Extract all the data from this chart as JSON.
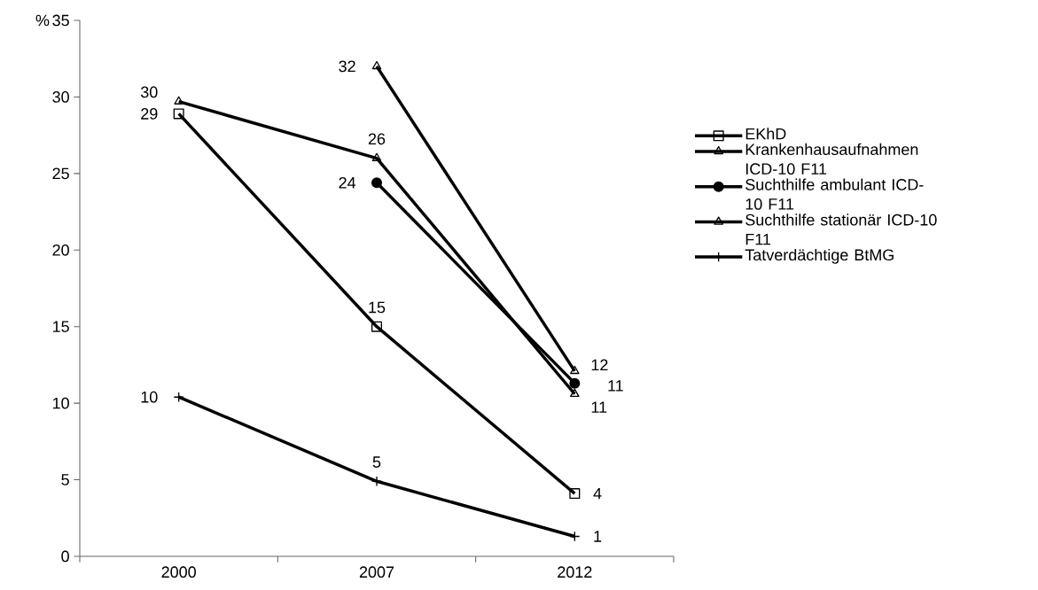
{
  "chart_data": {
    "type": "line",
    "ylabel": "%",
    "categories": [
      "2000",
      "2007",
      "2012"
    ],
    "ylim": [
      0,
      35
    ],
    "yticks": [
      0,
      5,
      10,
      15,
      20,
      25,
      30,
      35
    ],
    "grid": false,
    "legend": "right",
    "line_style": "solid",
    "series": [
      {
        "name": "EKhD",
        "color": "#000000",
        "marker": "square",
        "values": [
          28.9,
          15.0,
          4.1
        ],
        "value_labels": [
          "29",
          "15",
          "4"
        ]
      },
      {
        "name": "Krankenhausaufnahmen ICD-10 F11",
        "color": "#000000",
        "marker": "triangle",
        "values": [
          29.7,
          26.0,
          10.6
        ],
        "value_labels": [
          "30",
          "26",
          "11"
        ]
      },
      {
        "name": "Suchthilfe ambulant ICD-10 F11",
        "color": "#000000",
        "marker": "circle",
        "values": [
          null,
          24.4,
          11.3
        ],
        "value_labels": [
          null,
          "24",
          "11"
        ]
      },
      {
        "name": "Suchthilfe stationär ICD-10 F11",
        "color": "#000000",
        "marker": "triangle",
        "values": [
          null,
          32.0,
          12.1
        ],
        "value_labels": [
          null,
          "32",
          "12"
        ]
      },
      {
        "name": "Tatverdächtige BtMG",
        "color": "#000000",
        "marker": "cross",
        "values": [
          10.4,
          4.9,
          1.3
        ],
        "value_labels": [
          "10",
          "5",
          "1"
        ]
      }
    ]
  }
}
